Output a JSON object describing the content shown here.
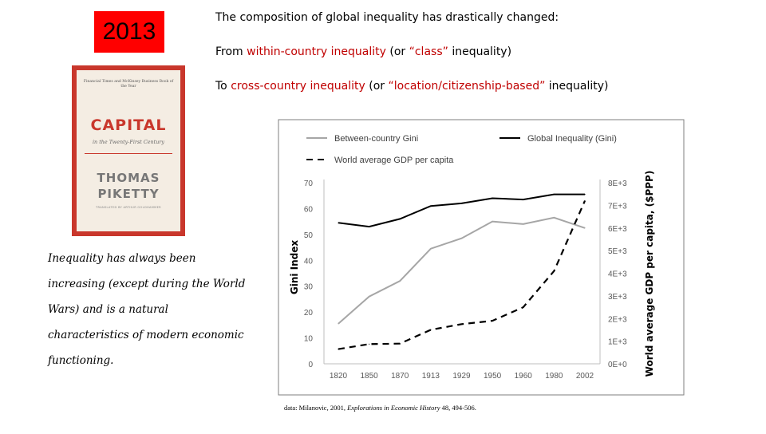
{
  "badge": {
    "year": "2013"
  },
  "book": {
    "blurb": "Financial Times and McKinsey Business Book of the Year",
    "title": "CAPITAL",
    "subtitle": "in the Twenty-First Century",
    "author_first": "THOMAS",
    "author_last": "PIKETTY",
    "translator": "TRANSLATED BY ARTHUR GOLDHAMMER",
    "colors": {
      "cover": "#c9372c",
      "paper": "#f4ede3"
    }
  },
  "text": {
    "headline": "The composition of global inequality has drastically changed:",
    "from_prefix": "From ",
    "from_term": "within-country inequality",
    "from_mid": " (or ",
    "from_quote": "“class”",
    "from_suffix": " inequality)",
    "to_prefix": "To ",
    "to_term": "cross-country inequality",
    "to_mid": " (or ",
    "to_quote": "“location/citizenship-based”",
    "to_suffix": " inequality)",
    "claim": "Inequality has always been increasing (except during the World Wars) and is a natural characteristics of modern economic functioning.",
    "accent_color": "#c00000"
  },
  "chart_data": {
    "type": "line",
    "categories": [
      "1820",
      "1850",
      "1870",
      "1913",
      "1929",
      "1950",
      "1960",
      "1980",
      "2002"
    ],
    "series": [
      {
        "name": "Between-country Gini",
        "axis": "left",
        "style": "solid",
        "color": "#a6a6a6",
        "values": [
          15.5,
          26,
          32,
          44.5,
          48.5,
          55,
          54,
          56.5,
          52.5
        ]
      },
      {
        "name": "Global Inequality (Gini)",
        "axis": "left",
        "style": "solid",
        "color": "#000000",
        "values": [
          54.5,
          53,
          56,
          61,
          62,
          64,
          63.5,
          65.5,
          65.5
        ]
      },
      {
        "name": "World average GDP per capita",
        "axis": "right",
        "style": "dashed",
        "color": "#000000",
        "values": [
          650,
          870,
          890,
          1500,
          1750,
          1900,
          2500,
          4100,
          7200
        ]
      }
    ],
    "ylabel": "Gini Index",
    "ylim": [
      0,
      70
    ],
    "yticks": [
      "0",
      "10",
      "20",
      "30",
      "40",
      "50",
      "60",
      "70"
    ],
    "y2label": "World average GDP per capita, ($PPP)",
    "y2lim": [
      0,
      8000
    ],
    "y2ticks": [
      "0E+0",
      "1E+3",
      "2E+3",
      "3E+3",
      "4E+3",
      "5E+3",
      "6E+3",
      "7E+3",
      "8E+3"
    ],
    "legend": "top",
    "grid": false
  },
  "source": {
    "prefix": "data: Milanovic, 2001, ",
    "journal": "Explorations in Economic History",
    "suffix": " 48, 494-506."
  }
}
